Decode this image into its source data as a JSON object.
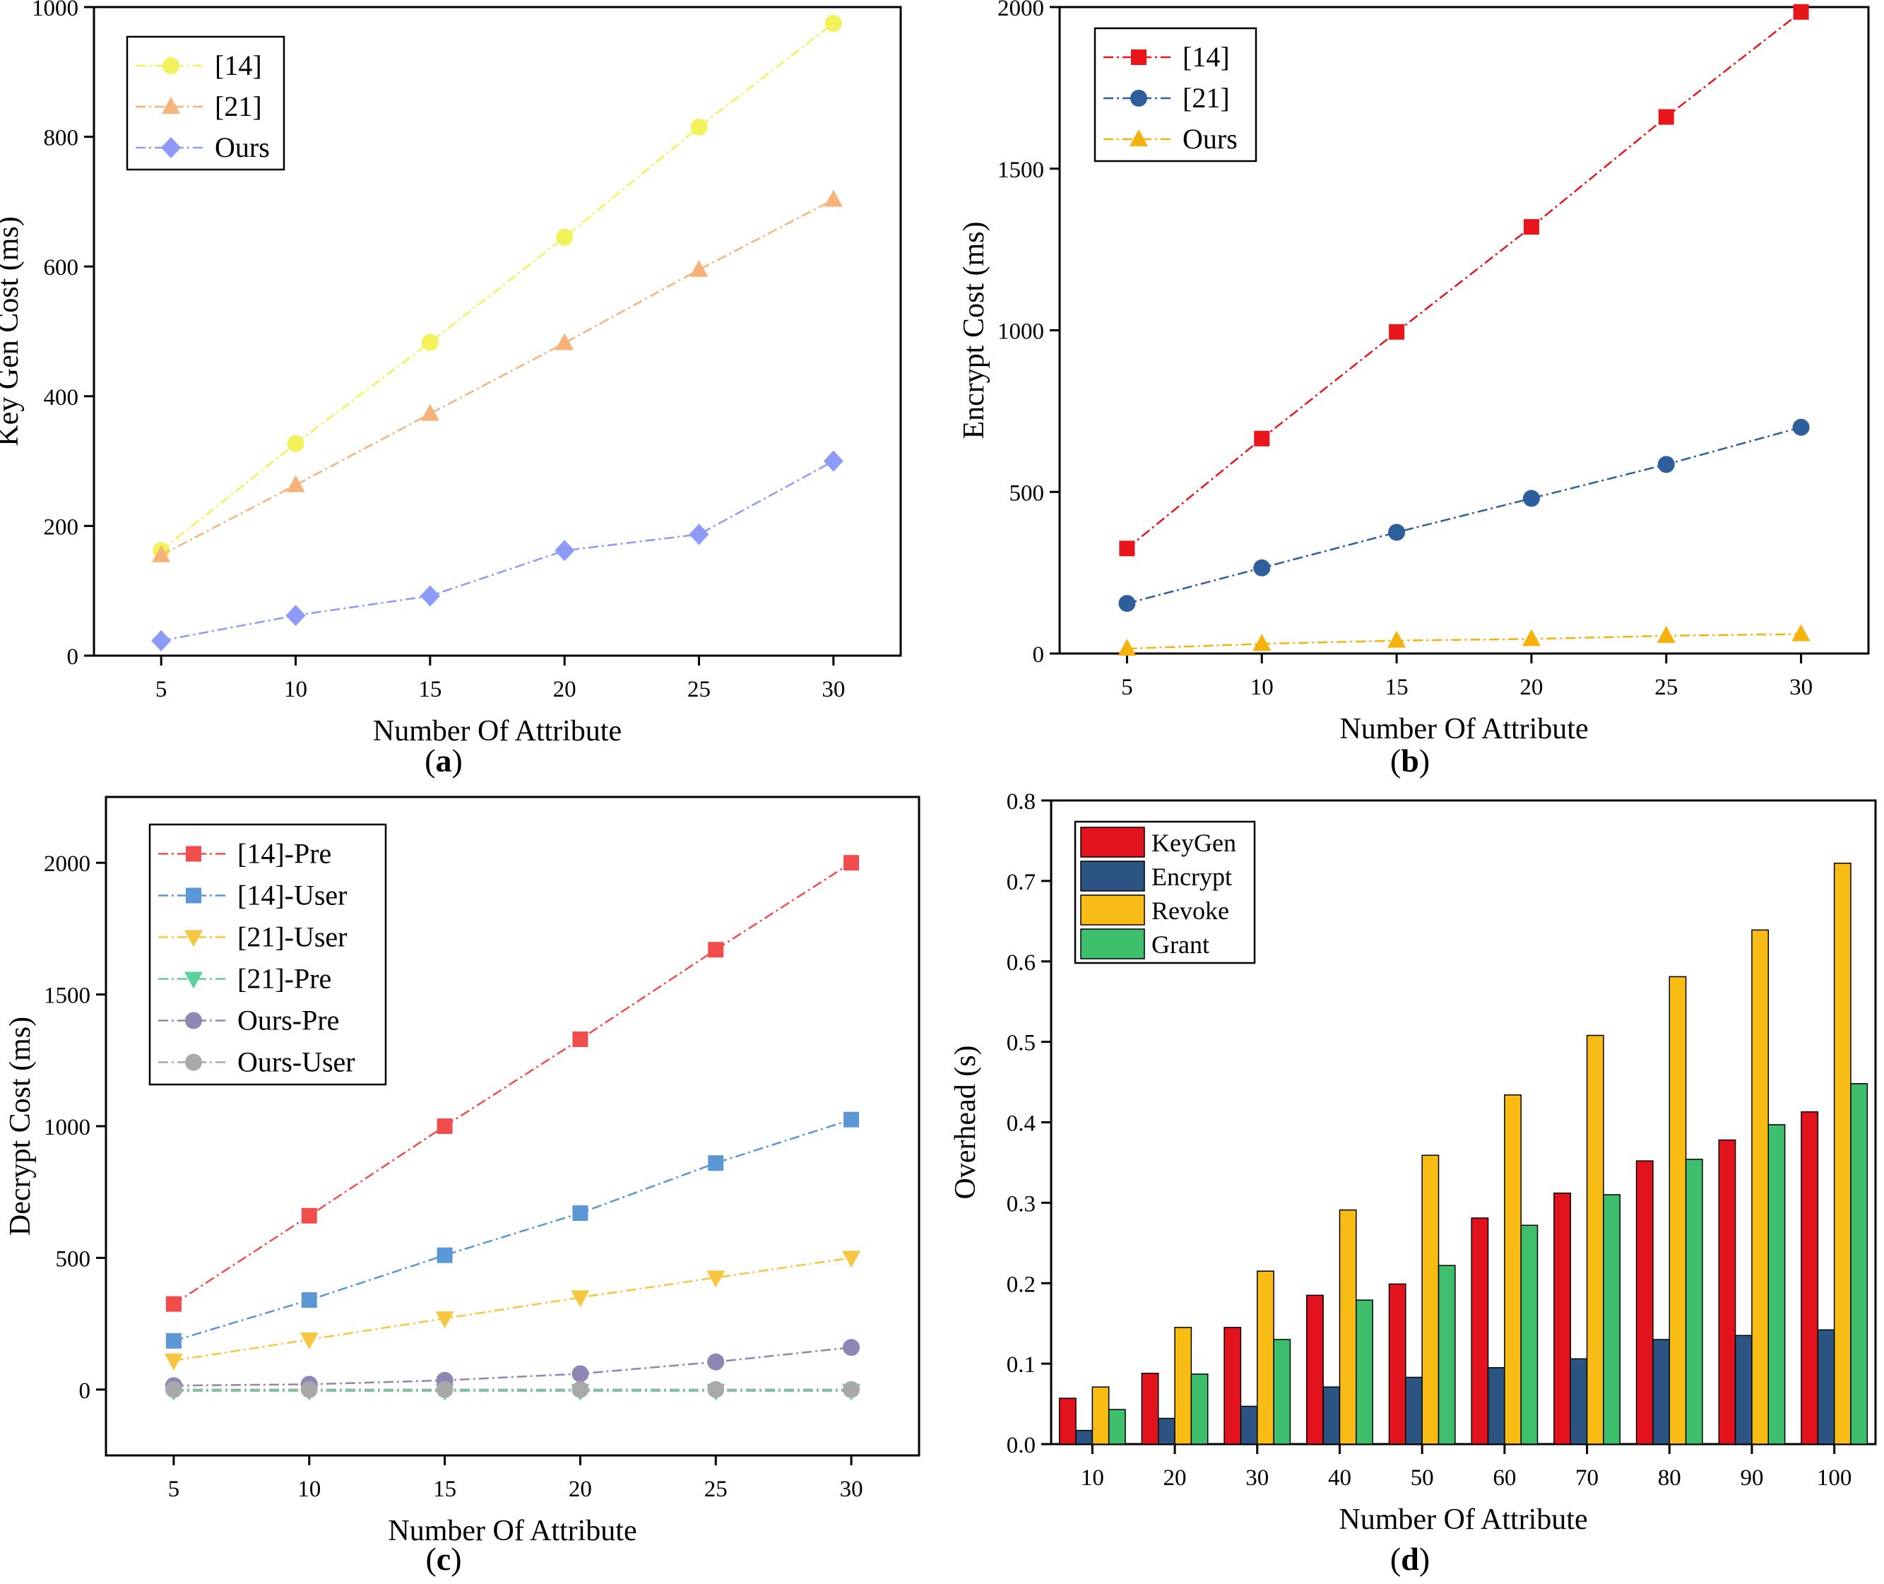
{
  "chart_data": [
    {
      "type": "line",
      "panel": "a",
      "xlabel": "Number Of Attribute",
      "ylabel": "Key Gen Cost (ms)",
      "x": [
        5,
        10,
        15,
        20,
        25,
        30
      ],
      "xlim": [
        2.5,
        32.5
      ],
      "ylim": [
        0,
        1000
      ],
      "yticks": [
        0,
        200,
        400,
        600,
        800,
        1000
      ],
      "legend": "top-left",
      "series": [
        {
          "name": "[14]",
          "marker": "circle",
          "color": "#f2f25a",
          "values": [
            162,
            327,
            483,
            645,
            815,
            975
          ]
        },
        {
          "name": "[21]",
          "marker": "triangle-up",
          "color": "#f7b27a",
          "values": [
            155,
            263,
            373,
            482,
            595,
            703
          ]
        },
        {
          "name": "Ours",
          "marker": "diamond",
          "color": "#8e9af7",
          "values": [
            23,
            62,
            92,
            162,
            187,
            300
          ]
        }
      ]
    },
    {
      "type": "line",
      "panel": "b",
      "xlabel": "Number Of Attribute",
      "ylabel": "Encrypt Cost (ms)",
      "x": [
        5,
        10,
        15,
        20,
        25,
        30
      ],
      "xlim": [
        2.5,
        32.5
      ],
      "ylim": [
        0,
        2000
      ],
      "yticks": [
        0,
        500,
        1000,
        1500,
        2000
      ],
      "legend": "top-left",
      "series": [
        {
          "name": "[14]",
          "marker": "square",
          "color": "#e8151b",
          "values": [
            325,
            665,
            995,
            1320,
            1660,
            1985
          ]
        },
        {
          "name": "[21]",
          "marker": "circle",
          "color": "#2e5f9c",
          "values": [
            155,
            265,
            375,
            480,
            585,
            700
          ]
        },
        {
          "name": "Ours",
          "marker": "triangle-up",
          "color": "#f5b20c",
          "values": [
            15,
            30,
            40,
            45,
            55,
            60
          ]
        }
      ]
    },
    {
      "type": "line",
      "panel": "c",
      "xlabel": "Number Of Attribute",
      "ylabel": "Decrypt Cost (ms)",
      "x": [
        5,
        10,
        15,
        20,
        25,
        30
      ],
      "xlim": [
        2.5,
        32.5
      ],
      "ylim": [
        -250,
        2250
      ],
      "yticks": [
        0,
        500,
        1000,
        1500,
        2000
      ],
      "legend": "top-left",
      "series": [
        {
          "name": "[14]-Pre",
          "marker": "square",
          "color": "#f24d4d",
          "values": [
            325,
            660,
            1000,
            1330,
            1670,
            2000
          ]
        },
        {
          "name": "[14]-User",
          "marker": "square",
          "color": "#5b96d6",
          "values": [
            185,
            340,
            510,
            670,
            860,
            1025
          ]
        },
        {
          "name": "[21]-User",
          "marker": "triangle-down",
          "color": "#f7c640",
          "values": [
            110,
            190,
            270,
            350,
            425,
            500
          ]
        },
        {
          "name": "[21]-Pre",
          "marker": "triangle-down",
          "color": "#5dd19b",
          "values": [
            -5,
            -5,
            -5,
            -5,
            -5,
            -5
          ]
        },
        {
          "name": "Ours-Pre",
          "marker": "circle",
          "color": "#8f86b3",
          "values": [
            15,
            20,
            35,
            60,
            105,
            160
          ]
        },
        {
          "name": "Ours-User",
          "marker": "circle",
          "color": "#a9a9a9",
          "values": [
            0,
            0,
            0,
            0,
            0,
            0
          ]
        }
      ]
    },
    {
      "type": "bar",
      "panel": "d",
      "xlabel": "Number Of Attribute",
      "ylabel": "Overhead (s)",
      "categories": [
        "10",
        "20",
        "30",
        "40",
        "50",
        "60",
        "70",
        "80",
        "90",
        "100"
      ],
      "ylim": [
        0,
        0.8
      ],
      "yticks": [
        "0.0",
        "0.1",
        "0.2",
        "0.3",
        "0.4",
        "0.5",
        "0.6",
        "0.7",
        "0.8"
      ],
      "legend": "top-left",
      "series": [
        {
          "name": "KeyGen",
          "color": "#e3131e",
          "values": [
            0.057,
            0.088,
            0.145,
            0.185,
            0.199,
            0.281,
            0.312,
            0.352,
            0.378,
            0.413
          ]
        },
        {
          "name": "Encrypt",
          "color": "#2c5483",
          "values": [
            0.017,
            0.032,
            0.047,
            0.071,
            0.083,
            0.095,
            0.106,
            0.13,
            0.135,
            0.142
          ]
        },
        {
          "name": "Revoke",
          "color": "#f9bc15",
          "values": [
            0.071,
            0.145,
            0.215,
            0.291,
            0.359,
            0.434,
            0.508,
            0.581,
            0.639,
            0.722
          ]
        },
        {
          "name": "Grant",
          "color": "#3dbf6e",
          "values": [
            0.043,
            0.087,
            0.13,
            0.179,
            0.222,
            0.272,
            0.31,
            0.354,
            0.397,
            0.448
          ]
        }
      ]
    }
  ],
  "panel_labels": [
    "a",
    "b",
    "c",
    "d"
  ]
}
